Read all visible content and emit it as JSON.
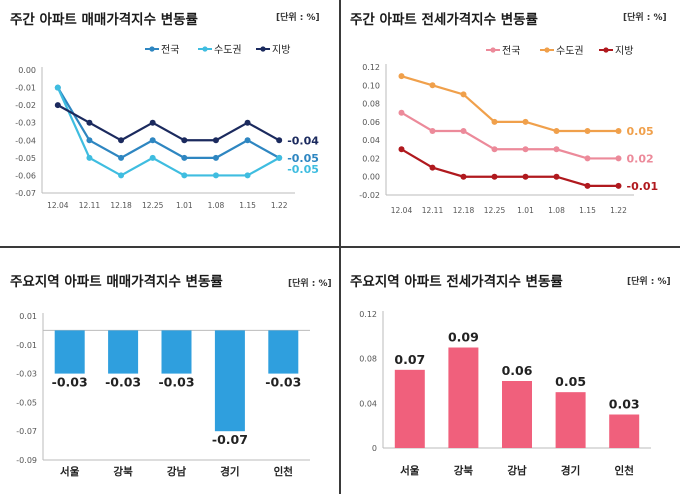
{
  "chart_data": [
    {
      "id": "weekly-sale",
      "type": "line",
      "title": "주간 아파트 매매가격지수 변동률",
      "unit": "[단위 : %]",
      "categories": [
        "12.04",
        "12.11",
        "12.18",
        "12.25",
        "1.01",
        "1.08",
        "1.15",
        "1.22"
      ],
      "ylim": [
        -0.07,
        0.0
      ],
      "yticks": [
        "0.00",
        "-0.01",
        "-0.02",
        "-0.03",
        "-0.04",
        "-0.05",
        "-0.06",
        "-0.07"
      ],
      "legend_position": "top-right",
      "series": [
        {
          "name": "전국",
          "color": "#2e86c1",
          "values": [
            -0.01,
            -0.04,
            -0.05,
            -0.04,
            -0.05,
            -0.05,
            -0.04,
            -0.05
          ],
          "end_label": "-0.05"
        },
        {
          "name": "수도권",
          "color": "#3fbde0",
          "values": [
            -0.01,
            -0.05,
            -0.06,
            -0.05,
            -0.06,
            -0.06,
            -0.06,
            -0.05
          ],
          "end_label": "-0.05"
        },
        {
          "name": "지방",
          "color": "#1b2a5e",
          "values": [
            -0.02,
            -0.03,
            -0.04,
            -0.03,
            -0.04,
            -0.04,
            -0.03,
            -0.04
          ],
          "end_label": "-0.04"
        }
      ]
    },
    {
      "id": "weekly-jeonse",
      "type": "line",
      "title": "주간 아파트 전세가격지수 변동률",
      "unit": "[단위 : %]",
      "categories": [
        "12.04",
        "12.11",
        "12.18",
        "12.25",
        "1.01",
        "1.08",
        "1.15",
        "1.22"
      ],
      "ylim": [
        -0.02,
        0.12
      ],
      "yticks": [
        "0.12",
        "0.10",
        "0.08",
        "0.06",
        "0.04",
        "0.02",
        "0.00",
        "-0.02"
      ],
      "legend_position": "top-right",
      "series": [
        {
          "name": "전국",
          "color": "#ec8a9a",
          "values": [
            0.07,
            0.05,
            0.05,
            0.03,
            0.03,
            0.03,
            0.02,
            0.02
          ],
          "end_label": "0.02"
        },
        {
          "name": "수도권",
          "color": "#f0a04b",
          "values": [
            0.11,
            0.1,
            0.09,
            0.06,
            0.06,
            0.05,
            0.05,
            0.05
          ],
          "end_label": "0.05"
        },
        {
          "name": "지방",
          "color": "#b0191e",
          "values": [
            0.03,
            0.01,
            0.0,
            0.0,
            0.0,
            0.0,
            -0.01,
            -0.01
          ],
          "end_label": "-0.01"
        }
      ]
    },
    {
      "id": "region-sale",
      "type": "bar",
      "title": "주요지역 아파트 매매가격지수 변동률",
      "unit": "[단위 : %]",
      "categories": [
        "서울",
        "강북",
        "강남",
        "경기",
        "인천"
      ],
      "values": [
        -0.03,
        -0.03,
        -0.03,
        -0.07,
        -0.03
      ],
      "labels": [
        "-0.03",
        "-0.03",
        "-0.03",
        "-0.07",
        "-0.03"
      ],
      "ylim": [
        -0.09,
        0.01
      ],
      "yticks": [
        "0.01",
        "-0.01",
        "-0.03",
        "-0.05",
        "-0.07",
        "-0.09"
      ],
      "color": "#2f9fde"
    },
    {
      "id": "region-jeonse",
      "type": "bar",
      "title": "주요지역 아파트 전세가격지수 변동률",
      "unit": "[단위 : %]",
      "categories": [
        "서울",
        "강북",
        "강남",
        "경기",
        "인천"
      ],
      "values": [
        0.07,
        0.09,
        0.06,
        0.05,
        0.03
      ],
      "labels": [
        "0.07",
        "0.09",
        "0.06",
        "0.05",
        "0.03"
      ],
      "ylim": [
        0.0,
        0.12
      ],
      "yticks": [
        "0.12",
        "0.08",
        "0.04",
        "0"
      ],
      "color": "#f0607c"
    }
  ]
}
